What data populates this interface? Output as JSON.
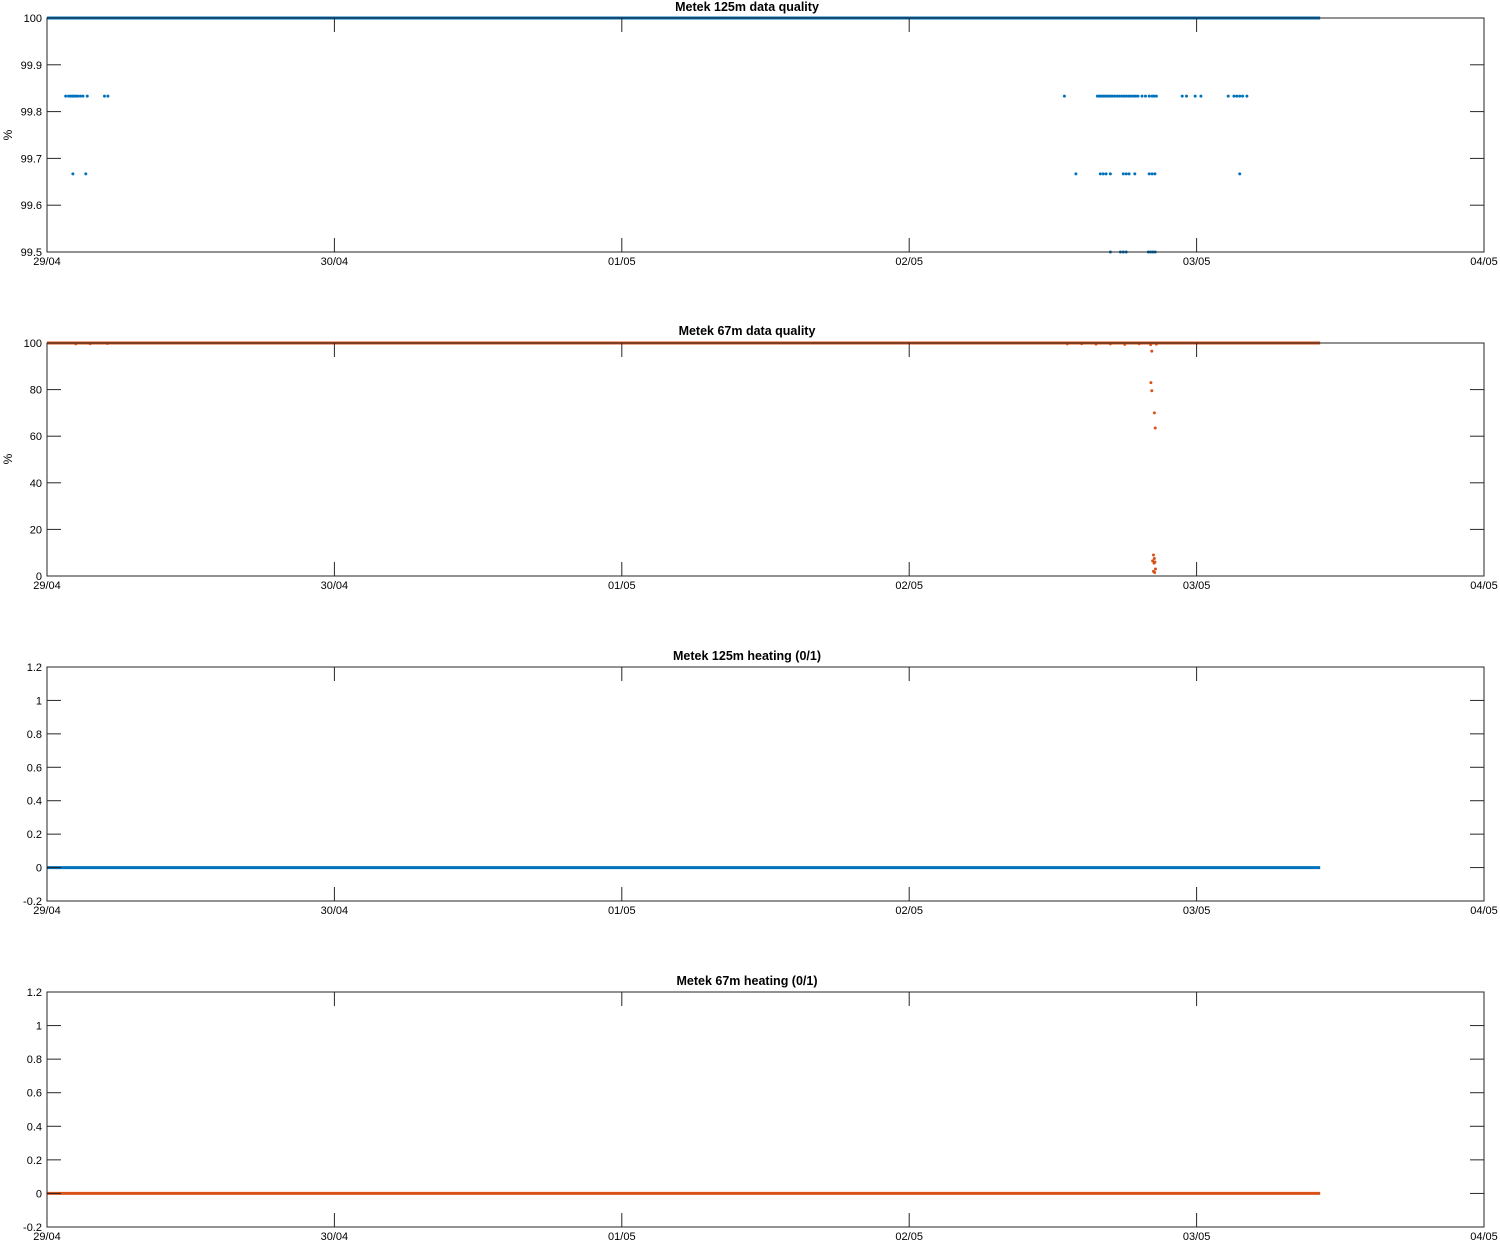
{
  "colors": {
    "blue": "#0072BD",
    "orange": "#D95319",
    "axis": "#262626"
  },
  "chart_data": [
    {
      "type": "scatter",
      "title": "Metek 125m data quality",
      "ylabel": "%",
      "xlim": [
        "29/04",
        "04/05"
      ],
      "ylim": [
        99.5,
        100
      ],
      "xticklabels": [
        "29/04",
        "30/04",
        "01/05",
        "02/05",
        "03/05",
        "04/05"
      ],
      "yticks": [
        99.5,
        99.6,
        99.7,
        99.8,
        99.9,
        100
      ],
      "yticklabels": [
        "99.5",
        "99.6",
        "99.7",
        "99.8",
        "99.9",
        "100"
      ],
      "series": [
        {
          "color": "#0072BD",
          "baseline": {
            "value": 100,
            "x_start_day": 0,
            "x_end_day": 4.43
          },
          "points": [
            [
              0.065,
              99.833
            ],
            [
              0.075,
              99.833
            ],
            [
              0.082,
              99.833
            ],
            [
              0.088,
              99.833
            ],
            [
              0.094,
              99.833
            ],
            [
              0.1,
              99.833
            ],
            [
              0.107,
              99.833
            ],
            [
              0.116,
              99.833
            ],
            [
              0.125,
              99.833
            ],
            [
              0.14,
              99.833
            ],
            [
              0.2,
              99.833
            ],
            [
              0.212,
              99.833
            ],
            [
              0.09,
              99.667
            ],
            [
              0.135,
              99.667
            ],
            [
              3.54,
              99.833
            ],
            [
              3.655,
              99.833
            ],
            [
              3.662,
              99.833
            ],
            [
              3.668,
              99.833
            ],
            [
              3.675,
              99.833
            ],
            [
              3.682,
              99.833
            ],
            [
              3.688,
              99.833
            ],
            [
              3.695,
              99.833
            ],
            [
              3.702,
              99.833
            ],
            [
              3.708,
              99.833
            ],
            [
              3.716,
              99.833
            ],
            [
              3.724,
              99.833
            ],
            [
              3.732,
              99.833
            ],
            [
              3.74,
              99.833
            ],
            [
              3.748,
              99.833
            ],
            [
              3.756,
              99.833
            ],
            [
              3.764,
              99.833
            ],
            [
              3.772,
              99.833
            ],
            [
              3.78,
              99.833
            ],
            [
              3.788,
              99.833
            ],
            [
              3.796,
              99.833
            ],
            [
              3.81,
              99.833
            ],
            [
              3.822,
              99.833
            ],
            [
              3.835,
              99.833
            ],
            [
              3.845,
              99.833
            ],
            [
              3.852,
              99.833
            ],
            [
              3.86,
              99.833
            ],
            [
              3.95,
              99.833
            ],
            [
              3.965,
              99.833
            ],
            [
              3.995,
              99.833
            ],
            [
              4.015,
              99.833
            ],
            [
              4.11,
              99.833
            ],
            [
              4.13,
              99.833
            ],
            [
              4.14,
              99.833
            ],
            [
              4.15,
              99.833
            ],
            [
              4.16,
              99.833
            ],
            [
              4.175,
              99.833
            ],
            [
              3.58,
              99.667
            ],
            [
              3.665,
              99.667
            ],
            [
              3.675,
              99.667
            ],
            [
              3.685,
              99.667
            ],
            [
              3.7,
              99.667
            ],
            [
              3.745,
              99.667
            ],
            [
              3.755,
              99.667
            ],
            [
              3.765,
              99.667
            ],
            [
              3.785,
              99.667
            ],
            [
              3.835,
              99.667
            ],
            [
              3.845,
              99.667
            ],
            [
              3.855,
              99.667
            ],
            [
              4.15,
              99.667
            ],
            [
              3.7,
              99.5
            ],
            [
              3.735,
              99.5
            ],
            [
              3.745,
              99.5
            ],
            [
              3.755,
              99.5
            ],
            [
              3.832,
              99.5
            ],
            [
              3.84,
              99.5
            ],
            [
              3.848,
              99.5
            ],
            [
              3.856,
              99.5
            ]
          ]
        }
      ]
    },
    {
      "type": "scatter",
      "title": "Metek 67m data quality",
      "ylabel": "%",
      "xlim": [
        "29/04",
        "04/05"
      ],
      "ylim": [
        0,
        100
      ],
      "xticklabels": [
        "29/04",
        "30/04",
        "01/05",
        "02/05",
        "03/05",
        "04/05"
      ],
      "yticks": [
        0,
        20,
        40,
        60,
        80,
        100
      ],
      "yticklabels": [
        "0",
        "20",
        "40",
        "60",
        "80",
        "100"
      ],
      "series": [
        {
          "color": "#D95319",
          "baseline": {
            "value": 100,
            "x_start_day": 0,
            "x_end_day": 4.43
          },
          "points": [
            [
              0.1,
              99.6
            ],
            [
              0.15,
              99.7
            ],
            [
              0.21,
              99.8
            ],
            [
              3.55,
              99.6
            ],
            [
              3.6,
              99.7
            ],
            [
              3.65,
              99.5
            ],
            [
              3.7,
              99.6
            ],
            [
              3.75,
              99.4
            ],
            [
              3.8,
              99.7
            ],
            [
              3.84,
              99.3
            ],
            [
              3.86,
              99.5
            ],
            [
              3.844,
              96.5
            ],
            [
              3.841,
              83
            ],
            [
              3.844,
              79.5
            ],
            [
              3.853,
              70
            ],
            [
              3.856,
              63.5
            ],
            [
              3.85,
              9
            ],
            [
              3.853,
              7.5
            ],
            [
              3.847,
              6.5
            ],
            [
              3.855,
              6
            ],
            [
              3.852,
              5.5
            ],
            [
              3.857,
              3
            ],
            [
              3.85,
              2
            ],
            [
              3.854,
              1.5
            ]
          ]
        }
      ]
    },
    {
      "type": "line",
      "title": "Metek 125m heating (0/1)",
      "ylabel": "",
      "xlim": [
        "29/04",
        "04/05"
      ],
      "ylim": [
        -0.2,
        1.2
      ],
      "xticklabels": [
        "29/04",
        "30/04",
        "01/05",
        "02/05",
        "03/05",
        "04/05"
      ],
      "yticks": [
        -0.2,
        0,
        0.2,
        0.4,
        0.6,
        0.8,
        1,
        1.2
      ],
      "yticklabels": [
        "-0.2",
        "0",
        "0.2",
        "0.4",
        "0.6",
        "0.8",
        "1",
        "1.2"
      ],
      "series": [
        {
          "color": "#0072BD",
          "baseline": {
            "value": 0,
            "x_start_day": 0,
            "x_end_day": 4.43
          },
          "points": []
        }
      ]
    },
    {
      "type": "line",
      "title": "Metek 67m heating (0/1)",
      "ylabel": "",
      "xlim": [
        "29/04",
        "04/05"
      ],
      "ylim": [
        -0.2,
        1.2
      ],
      "xticklabels": [
        "29/04",
        "30/04",
        "01/05",
        "02/05",
        "03/05",
        "04/05"
      ],
      "yticks": [
        -0.2,
        0,
        0.2,
        0.4,
        0.6,
        0.8,
        1,
        1.2
      ],
      "yticklabels": [
        "-0.2",
        "0",
        "0.2",
        "0.4",
        "0.6",
        "0.8",
        "1",
        "1.2"
      ],
      "series": [
        {
          "color": "#D95319",
          "baseline": {
            "value": 0,
            "x_start_day": 0,
            "x_end_day": 4.43
          },
          "points": []
        }
      ]
    }
  ]
}
